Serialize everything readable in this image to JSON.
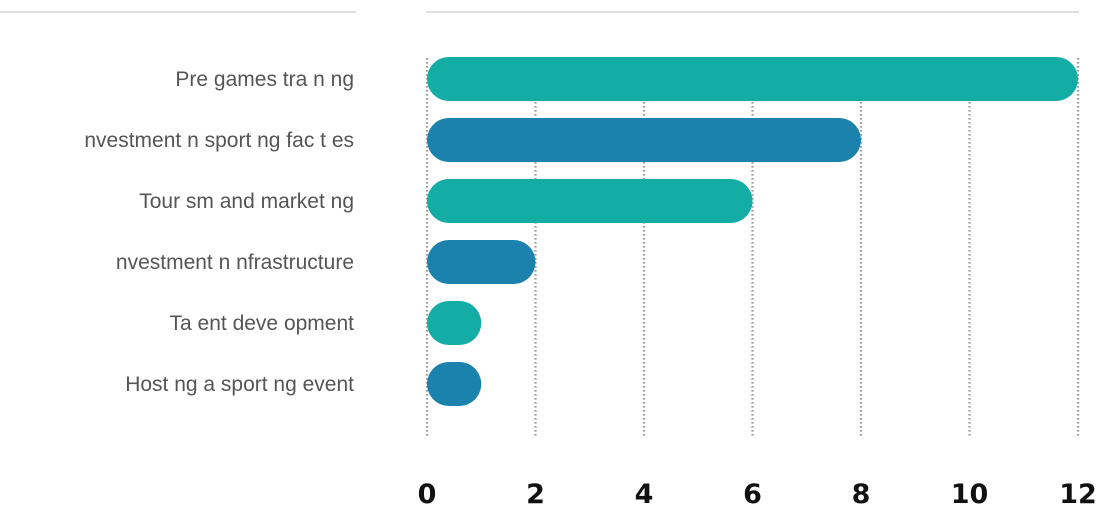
{
  "colors": {
    "teal": "#14ADA6",
    "blue": "#1A82AD",
    "label_text": "#555555",
    "tick_text": "#111111",
    "gridline": "#9A9A9A",
    "top_rule": "#CCCCCC"
  },
  "chart_data": {
    "type": "bar",
    "orientation": "horizontal",
    "categories": [
      "Pre games tra n ng",
      "nvestment n sport ng fac t es",
      "Tour sm and market ng",
      "nvestment n nfrastructure",
      "Ta ent deve opment",
      "Host ng a sport ng event"
    ],
    "values": [
      12,
      8,
      6,
      2,
      1,
      1
    ],
    "bar_colors": [
      "#14ADA6",
      "#1A82AD",
      "#14ADA6",
      "#1A82AD",
      "#14ADA6",
      "#1A82AD"
    ],
    "xlim": [
      0,
      12
    ],
    "x_ticks": [
      0,
      2,
      4,
      6,
      8,
      10,
      12
    ],
    "x_tick_labels": [
      "0",
      "2",
      "4",
      "6",
      "8",
      "10",
      "12"
    ],
    "grid": "vertical dotted",
    "legend": "none"
  }
}
